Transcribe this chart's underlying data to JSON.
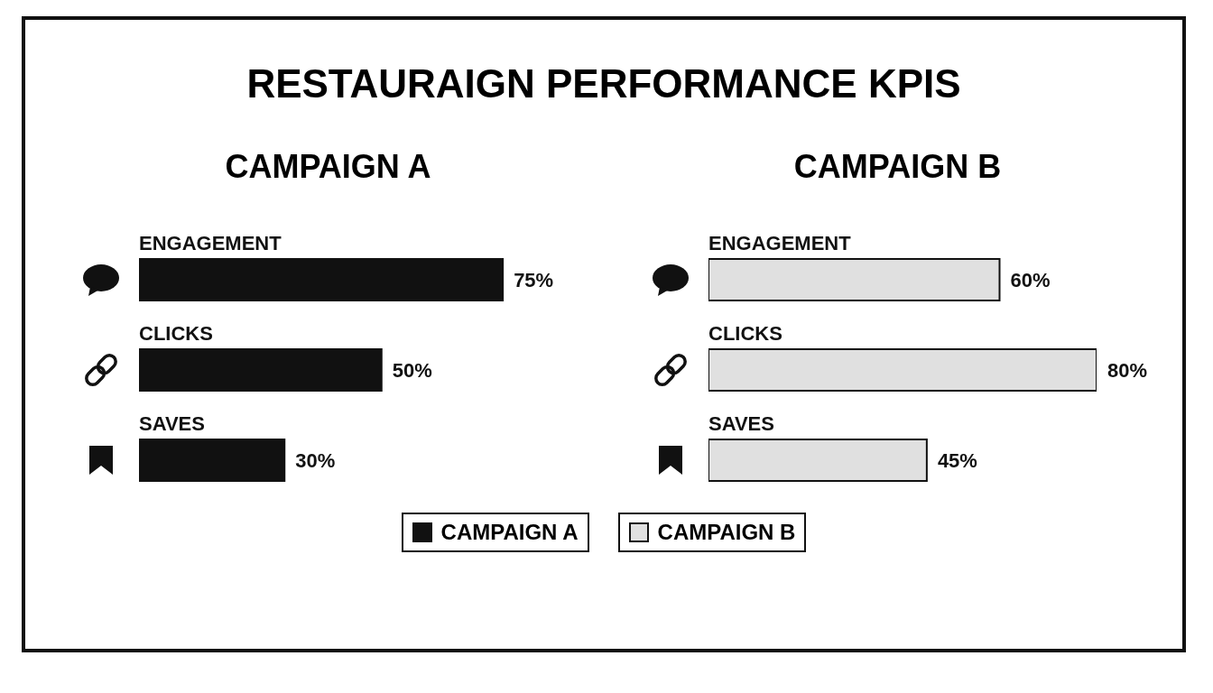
{
  "chart_data": [
    {
      "type": "bar",
      "orientation": "horizontal",
      "title": "RESTAURAIGN PERFORMANCE KPIS",
      "subtitle": "CAMPAIGN A",
      "categories": [
        "ENGAGEMENT",
        "CLICKS",
        "SAVES"
      ],
      "legend": "bottom",
      "series": [
        {
          "name": "CAMPAIGN A",
          "color": "#111111",
          "values": [
            75,
            50,
            30
          ],
          "value_labels": [
            "75%",
            "50%",
            "30%"
          ]
        }
      ]
    },
    {
      "type": "bar",
      "orientation": "horizontal",
      "subtitle": "CAMPAIGN B",
      "categories": [
        "ENGAGEMENT",
        "CLICKS",
        "SAVES"
      ],
      "legend": "bottom",
      "series": [
        {
          "name": "CAMPAIGN B",
          "color": "#e0e0e0",
          "values": [
            60,
            80,
            45
          ],
          "value_labels": [
            "60%",
            "80%",
            "45%"
          ]
        }
      ]
    }
  ]
}
